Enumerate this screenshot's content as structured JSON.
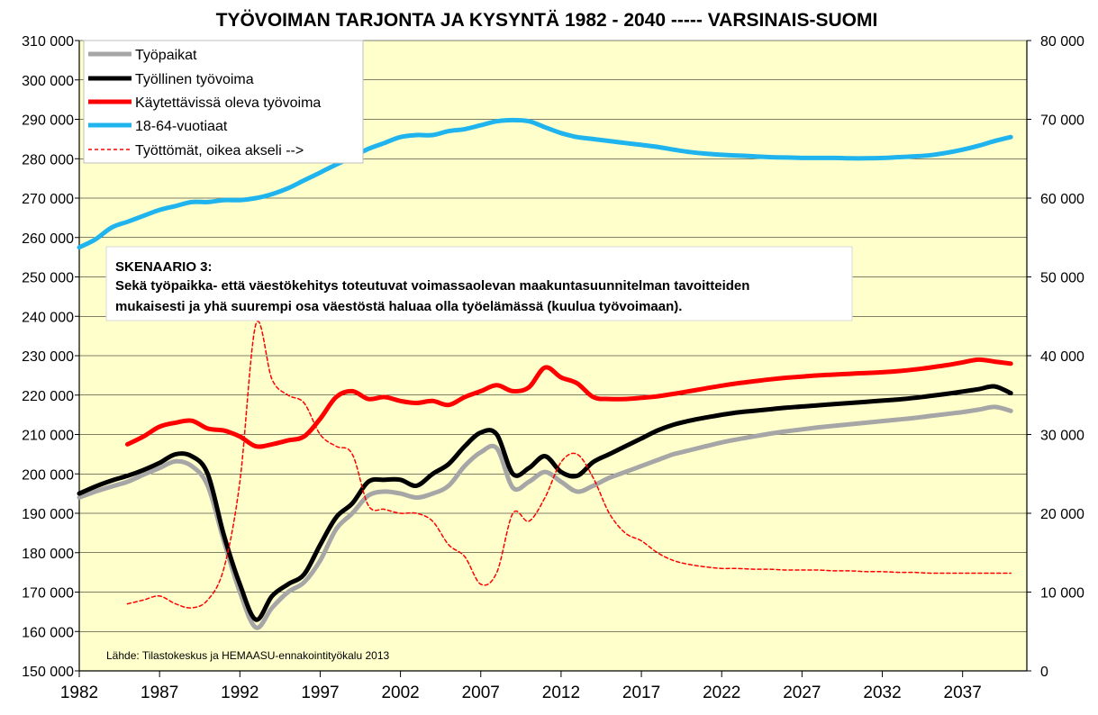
{
  "chart_data": {
    "type": "line",
    "title": "TYÖVOIMAN TARJONTA JA KYSYNTÄ 1982 - 2040 ----- VARSINAIS-SUOMI",
    "xlabel": "",
    "ylabel": "",
    "xlim": [
      1982,
      2041
    ],
    "ylim": [
      150000,
      310000
    ],
    "y2lim": [
      0,
      80000
    ],
    "x_ticks": [
      "1982",
      "1987",
      "1992",
      "1997",
      "2002",
      "2007",
      "2012",
      "2017",
      "2022",
      "2027",
      "2032",
      "2037"
    ],
    "y_ticks": [
      "310 000",
      "300 000",
      "290 000",
      "280 000",
      "270 000",
      "260 000",
      "250 000",
      "240 000",
      "230 000",
      "220 000",
      "210 000",
      "200 000",
      "190 000",
      "180 000",
      "170 000",
      "160 000",
      "150 000"
    ],
    "y2_ticks": [
      "80 000",
      "70 000",
      "60 000",
      "50 000",
      "40 000",
      "30 000",
      "20 000",
      "10 000",
      "0"
    ],
    "grid": true,
    "plot_background": "#ffffcc",
    "legend_position": "top-left",
    "series": [
      {
        "name": "Työpaikat",
        "color": "#a6a6a6",
        "axis": "left",
        "style": "solid",
        "x": [
          1982,
          1983,
          1984,
          1985,
          1986,
          1987,
          1988,
          1989,
          1990,
          1991,
          1992,
          1993,
          1994,
          1995,
          1996,
          1997,
          1998,
          1999,
          2000,
          2001,
          2002,
          2003,
          2004,
          2005,
          2006,
          2007,
          2008,
          2009,
          2010,
          2011,
          2012,
          2013,
          2014,
          2015,
          2016,
          2017,
          2018,
          2019,
          2020,
          2021,
          2022,
          2023,
          2024,
          2025,
          2026,
          2027,
          2028,
          2029,
          2030,
          2031,
          2032,
          2033,
          2034,
          2035,
          2036,
          2037,
          2038,
          2039,
          2040
        ],
        "values": [
          194000,
          195500,
          196800,
          198000,
          199800,
          201500,
          203200,
          202000,
          197000,
          183000,
          170000,
          161000,
          166000,
          170000,
          172500,
          178000,
          186000,
          190000,
          194500,
          195500,
          195000,
          194000,
          195000,
          197000,
          202000,
          205500,
          206500,
          196500,
          198000,
          200500,
          198000,
          195500,
          197000,
          199000,
          200500,
          202000,
          203500,
          205000,
          206000,
          207000,
          208000,
          208800,
          209500,
          210200,
          210800,
          211300,
          211800,
          212200,
          212600,
          213000,
          213400,
          213800,
          214200,
          214700,
          215200,
          215700,
          216300,
          217000,
          216000
        ]
      },
      {
        "name": "Työllinen työvoima",
        "color": "#000000",
        "axis": "left",
        "style": "solid",
        "x": [
          1982,
          1983,
          1984,
          1985,
          1986,
          1987,
          1988,
          1989,
          1990,
          1991,
          1992,
          1993,
          1994,
          1995,
          1996,
          1997,
          1998,
          1999,
          2000,
          2001,
          2002,
          2003,
          2004,
          2005,
          2006,
          2007,
          2008,
          2009,
          2010,
          2011,
          2012,
          2013,
          2014,
          2015,
          2016,
          2017,
          2018,
          2019,
          2020,
          2021,
          2022,
          2023,
          2024,
          2025,
          2026,
          2027,
          2028,
          2029,
          2030,
          2031,
          2032,
          2033,
          2034,
          2035,
          2036,
          2037,
          2038,
          2039,
          2040
        ],
        "values": [
          195000,
          196800,
          198300,
          199500,
          201000,
          202800,
          205000,
          204500,
          200000,
          184500,
          172000,
          163000,
          169000,
          172000,
          174500,
          182000,
          189000,
          192500,
          198000,
          198500,
          198500,
          197000,
          200000,
          202500,
          207000,
          210500,
          210000,
          200000,
          201500,
          204500,
          200500,
          199500,
          203000,
          205000,
          207000,
          209000,
          211000,
          212500,
          213500,
          214300,
          215000,
          215600,
          216000,
          216400,
          216800,
          217100,
          217400,
          217700,
          218000,
          218300,
          218600,
          218900,
          219300,
          219800,
          220300,
          220900,
          221500,
          222200,
          220500
        ]
      },
      {
        "name": "Käytettävissä oleva työvoima",
        "color": "#ff0000",
        "axis": "left",
        "style": "solid",
        "x": [
          1985,
          1986,
          1987,
          1988,
          1989,
          1990,
          1991,
          1992,
          1993,
          1994,
          1995,
          1996,
          1997,
          1998,
          1999,
          2000,
          2001,
          2002,
          2003,
          2004,
          2005,
          2006,
          2007,
          2008,
          2009,
          2010,
          2011,
          2012,
          2013,
          2014,
          2015,
          2016,
          2017,
          2018,
          2019,
          2020,
          2021,
          2022,
          2023,
          2024,
          2025,
          2026,
          2027,
          2028,
          2029,
          2030,
          2031,
          2032,
          2033,
          2034,
          2035,
          2036,
          2037,
          2038,
          2039,
          2040
        ],
        "values": [
          207500,
          209500,
          212000,
          213000,
          213500,
          211500,
          211000,
          209500,
          207000,
          207500,
          208500,
          209500,
          214000,
          219500,
          221000,
          219000,
          219500,
          218500,
          218000,
          218500,
          217500,
          219500,
          221000,
          222500,
          221000,
          222000,
          227000,
          224500,
          223000,
          219500,
          219000,
          219000,
          219300,
          219700,
          220300,
          221000,
          221700,
          222400,
          223000,
          223500,
          224000,
          224400,
          224700,
          225000,
          225200,
          225400,
          225600,
          225800,
          226100,
          226500,
          227000,
          227600,
          228300,
          229000,
          228500,
          228000
        ]
      },
      {
        "name": "18-64-vuotiaat",
        "color": "#1fb4ee",
        "axis": "left",
        "style": "solid",
        "x": [
          1982,
          1983,
          1984,
          1985,
          1986,
          1987,
          1988,
          1989,
          1990,
          1991,
          1992,
          1993,
          1994,
          1995,
          1996,
          1997,
          1998,
          1999,
          2000,
          2001,
          2002,
          2003,
          2004,
          2005,
          2006,
          2007,
          2008,
          2009,
          2010,
          2011,
          2012,
          2013,
          2014,
          2015,
          2016,
          2017,
          2018,
          2019,
          2020,
          2021,
          2022,
          2023,
          2024,
          2025,
          2026,
          2027,
          2028,
          2029,
          2030,
          2031,
          2032,
          2033,
          2034,
          2035,
          2036,
          2037,
          2038,
          2039,
          2040
        ],
        "values": [
          257500,
          259500,
          262500,
          264000,
          265500,
          267000,
          268000,
          269000,
          269000,
          269500,
          269500,
          270000,
          271000,
          272500,
          274500,
          276500,
          278500,
          280500,
          282500,
          284000,
          285500,
          286000,
          286000,
          287000,
          287500,
          288500,
          289500,
          289800,
          289500,
          288000,
          286500,
          285500,
          285000,
          284500,
          284000,
          283500,
          283000,
          282300,
          281700,
          281300,
          281000,
          280800,
          280600,
          280400,
          280300,
          280200,
          280200,
          280200,
          280100,
          280100,
          280200,
          280400,
          280600,
          280900,
          281500,
          282300,
          283300,
          284500,
          285500
        ]
      },
      {
        "name": "Työttömät, oikea akseli -->",
        "color": "#ff0000",
        "axis": "right",
        "style": "dashed",
        "x": [
          1985,
          1986,
          1987,
          1988,
          1989,
          1990,
          1991,
          1992,
          1993,
          1994,
          1995,
          1996,
          1997,
          1998,
          1999,
          2000,
          2001,
          2002,
          2003,
          2004,
          2005,
          2006,
          2007,
          2008,
          2009,
          2010,
          2011,
          2012,
          2013,
          2014,
          2015,
          2016,
          2017,
          2018,
          2019,
          2020,
          2021,
          2022,
          2023,
          2024,
          2025,
          2026,
          2027,
          2028,
          2029,
          2030,
          2031,
          2032,
          2033,
          2034,
          2035,
          2036,
          2037,
          2038,
          2039,
          2040
        ],
        "values": [
          8500,
          9000,
          9500,
          8500,
          8000,
          9000,
          13000,
          24000,
          44000,
          37000,
          35000,
          34000,
          30000,
          28500,
          27500,
          21000,
          20500,
          20000,
          20000,
          19000,
          16000,
          14500,
          11000,
          12500,
          20000,
          19000,
          22000,
          26500,
          27500,
          24500,
          20000,
          17500,
          16500,
          15000,
          14000,
          13500,
          13200,
          13000,
          13000,
          12900,
          12900,
          12800,
          12800,
          12800,
          12700,
          12700,
          12600,
          12600,
          12500,
          12500,
          12400,
          12400,
          12400,
          12400,
          12400,
          12400
        ]
      }
    ],
    "annotations": {
      "box_title": "SKENAARIO 3:",
      "box_line1": "Sekä työpaikka- että väestökehitys toteutuvat voimassaolevan maakuntasuunnitelman tavoitteiden",
      "box_line2": "mukaisesti ja yhä suurempi osa väestöstä haluaa olla työelämässä (kuulua työvoimaan).",
      "source": "Lähde: Tilastokeskus ja HEMAASU-ennakointityökalu 2013"
    }
  }
}
